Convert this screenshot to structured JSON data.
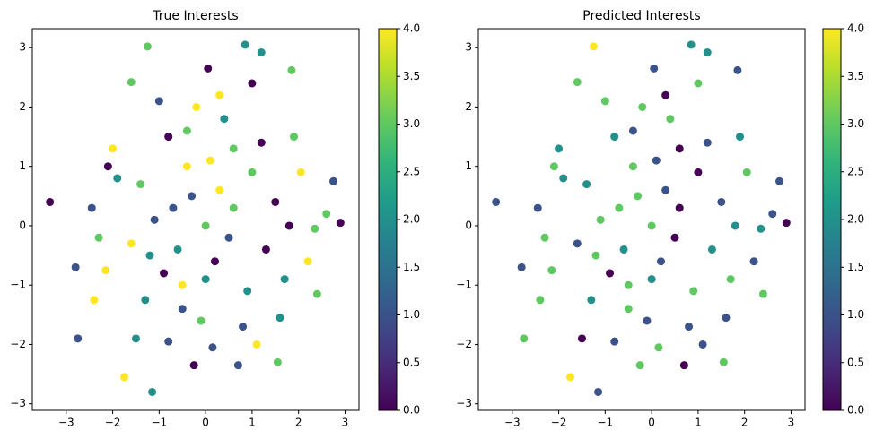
{
  "chart_data": [
    {
      "type": "scatter",
      "title": "True Interests",
      "colormap": "viridis",
      "x": [
        -3.35,
        -2.75,
        -1.15,
        -1.25,
        2.9,
        0.85,
        2.75,
        -1.75,
        1.55,
        1.85,
        1.2,
        0.05,
        -2.15,
        -2.4,
        -2.8,
        -2.45,
        -2.0,
        -1.6,
        2.4,
        2.35,
        2.05,
        1.9,
        1.6,
        0.7,
        -0.25,
        -0.8,
        -1.3,
        -0.5,
        0.2,
        0.6,
        -0.3,
        0.1,
        -0.8,
        0.4,
        1.0,
        -1.1,
        -1.6,
        1.3,
        0.9,
        -0.1,
        0.3,
        -1.0,
        1.5,
        -0.6,
        0.0,
        0.5,
        -0.4,
        1.2,
        -1.9,
        -2.3,
        2.2,
        0.15,
        -0.9,
        1.7,
        -1.4,
        0.8,
        -0.2,
        1.0,
        -1.5,
        2.6,
        -0.7,
        0.3,
        1.8,
        -1.2,
        0.6,
        -0.5,
        1.1,
        -2.1,
        0.0,
        -0.4
      ],
      "y": [
        0.4,
        -1.9,
        -2.8,
        3.02,
        0.05,
        3.05,
        0.75,
        -2.55,
        -2.3,
        2.62,
        2.92,
        2.65,
        -0.75,
        -1.25,
        -0.7,
        0.3,
        1.3,
        2.42,
        -1.15,
        -0.05,
        0.9,
        1.5,
        -1.55,
        -2.35,
        -2.35,
        -1.95,
        -1.25,
        -1.0,
        -0.6,
        0.3,
        0.5,
        1.1,
        1.5,
        1.8,
        0.9,
        0.1,
        -0.3,
        -0.4,
        -1.1,
        -1.6,
        2.2,
        2.1,
        0.4,
        -0.4,
        0.0,
        -0.2,
        1.0,
        1.4,
        0.8,
        -0.2,
        -0.6,
        -2.05,
        -0.8,
        -0.9,
        0.7,
        -1.7,
        2.0,
        2.4,
        -1.9,
        0.2,
        0.3,
        0.6,
        0.0,
        -0.5,
        1.3,
        -1.4,
        -2.0,
        1.0,
        -0.9,
        1.6
      ],
      "c": [
        0,
        1,
        2,
        3,
        0,
        2,
        1,
        4,
        3,
        3,
        2,
        0,
        4,
        4,
        1,
        1,
        4,
        3,
        3,
        3,
        4,
        3,
        2,
        1,
        0,
        1,
        2,
        4,
        0,
        3,
        1,
        4,
        0,
        2,
        3,
        1,
        4,
        0,
        2,
        3,
        4,
        1,
        0,
        2,
        3,
        1,
        4,
        0,
        2,
        3,
        4,
        1,
        0,
        2,
        3,
        1,
        4,
        0,
        2,
        3,
        1,
        4,
        0,
        2,
        3,
        1,
        4,
        0,
        2,
        3
      ],
      "xlim": [
        -3.73,
        3.3
      ],
      "ylim": [
        -3.11,
        3.32
      ],
      "clim": [
        0,
        4
      ],
      "xticks": [
        {
          "value": -3,
          "label": "−3"
        },
        {
          "value": -2,
          "label": "−2"
        },
        {
          "value": -1,
          "label": "−1"
        },
        0,
        1,
        2,
        3
      ],
      "yticks": [
        {
          "value": -3,
          "label": "−3"
        },
        {
          "value": -2,
          "label": "−2"
        },
        {
          "value": -1,
          "label": "−1"
        },
        0,
        1,
        2,
        3
      ],
      "cticks": [
        {
          "value": 0,
          "label": "0.0"
        },
        {
          "value": 0.5,
          "label": "0.5"
        },
        {
          "value": 1,
          "label": "1.0"
        },
        {
          "value": 1.5,
          "label": "1.5"
        },
        {
          "value": 2,
          "label": "2.0"
        },
        {
          "value": 2.5,
          "label": "2.5"
        },
        {
          "value": 3,
          "label": "3.0"
        },
        {
          "value": 3.5,
          "label": "3.5"
        },
        {
          "value": 4,
          "label": "4.0"
        }
      ]
    },
    {
      "type": "scatter",
      "title": "Predicted Interests",
      "colormap": "viridis",
      "x": [
        -3.35,
        -2.75,
        -1.15,
        -1.25,
        2.9,
        0.85,
        2.75,
        -1.75,
        1.55,
        1.85,
        1.2,
        0.05,
        -2.15,
        -2.4,
        -2.8,
        -2.45,
        -2.0,
        -1.6,
        2.4,
        2.35,
        2.05,
        1.9,
        1.6,
        0.7,
        -0.25,
        -0.8,
        -1.3,
        -0.5,
        0.2,
        0.6,
        -0.3,
        0.1,
        -0.8,
        0.4,
        1.0,
        -1.1,
        -1.6,
        1.3,
        0.9,
        -0.1,
        0.3,
        -1.0,
        1.5,
        -0.6,
        0.0,
        0.5,
        -0.4,
        1.2,
        -1.9,
        -2.3,
        2.2,
        0.15,
        -0.9,
        1.7,
        -1.4,
        0.8,
        -0.2,
        1.0,
        -1.5,
        2.6,
        -0.7,
        0.3,
        1.8,
        -1.2,
        0.6,
        -0.5,
        1.1,
        -2.1,
        0.0,
        -0.4
      ],
      "y": [
        0.4,
        -1.9,
        -2.8,
        3.02,
        0.05,
        3.05,
        0.75,
        -2.55,
        -2.3,
        2.62,
        2.92,
        2.65,
        -0.75,
        -1.25,
        -0.7,
        0.3,
        1.3,
        2.42,
        -1.15,
        -0.05,
        0.9,
        1.5,
        -1.55,
        -2.35,
        -2.35,
        -1.95,
        -1.25,
        -1.0,
        -0.6,
        0.3,
        0.5,
        1.1,
        1.5,
        1.8,
        0.9,
        0.1,
        -0.3,
        -0.4,
        -1.1,
        -1.6,
        2.2,
        2.1,
        0.4,
        -0.4,
        0.0,
        -0.2,
        1.0,
        1.4,
        0.8,
        -0.2,
        -0.6,
        -2.05,
        -0.8,
        -0.9,
        0.7,
        -1.7,
        2.0,
        2.4,
        -1.9,
        0.2,
        0.3,
        0.6,
        0.0,
        -0.5,
        1.3,
        -1.4,
        -2.0,
        1.0,
        -0.9,
        1.6
      ],
      "c": [
        1,
        3,
        1,
        4,
        0,
        2,
        1,
        4,
        3,
        1,
        2,
        1,
        3,
        3,
        1,
        1,
        2,
        3,
        3,
        2,
        3,
        2,
        1,
        0,
        3,
        1,
        2,
        3,
        1,
        0,
        3,
        1,
        2,
        3,
        0,
        3,
        1,
        2,
        3,
        1,
        0,
        3,
        1,
        2,
        3,
        0,
        3,
        1,
        2,
        3,
        1,
        3,
        0,
        3,
        2,
        1,
        3,
        3,
        0,
        1,
        3,
        1,
        2,
        3,
        0,
        3,
        1,
        3,
        2,
        1
      ],
      "xlim": [
        -3.73,
        3.3
      ],
      "ylim": [
        -3.11,
        3.32
      ],
      "clim": [
        0,
        4
      ],
      "xticks": [
        {
          "value": -3,
          "label": "−3"
        },
        {
          "value": -2,
          "label": "−2"
        },
        {
          "value": -1,
          "label": "−1"
        },
        0,
        1,
        2,
        3
      ],
      "yticks": [
        {
          "value": -3,
          "label": "−3"
        },
        {
          "value": -2,
          "label": "−2"
        },
        {
          "value": -1,
          "label": "−1"
        },
        0,
        1,
        2,
        3
      ],
      "cticks": [
        {
          "value": 0,
          "label": "0.0"
        },
        {
          "value": 0.5,
          "label": "0.5"
        },
        {
          "value": 1,
          "label": "1.0"
        },
        {
          "value": 1.5,
          "label": "1.5"
        },
        {
          "value": 2,
          "label": "2.0"
        },
        {
          "value": 2.5,
          "label": "2.5"
        },
        {
          "value": 3,
          "label": "3.0"
        },
        {
          "value": 3.5,
          "label": "3.5"
        },
        {
          "value": 4,
          "label": "4.0"
        }
      ]
    }
  ]
}
